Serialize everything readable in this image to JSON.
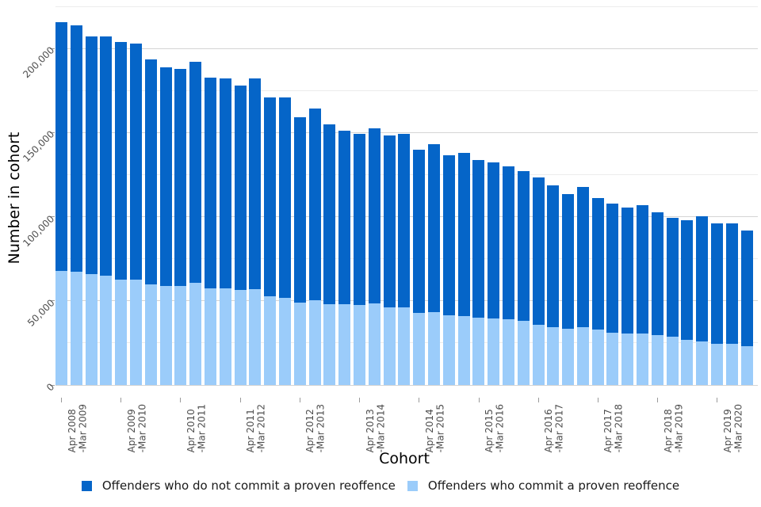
{
  "chart_data": {
    "type": "bar",
    "stacked": true,
    "xlabel": "Cohort",
    "ylabel": "Number in cohort",
    "ylim": [
      0,
      225000
    ],
    "grid_step": 25000,
    "grid_on": true,
    "legend_position": "bottom",
    "y_ticks": [
      0,
      50000,
      100000,
      150000,
      200000
    ],
    "y_tick_labels": [
      "0",
      "50,000",
      "100,000",
      "150,000",
      "200,000"
    ],
    "x_groups": [
      {
        "line1": "Apr 2008",
        "line2": "-Mar 2009",
        "bars": 4
      },
      {
        "line1": "Apr 2009",
        "line2": "-Mar 2010",
        "bars": 4
      },
      {
        "line1": "Apr 2010",
        "line2": "-Mar 2011",
        "bars": 4
      },
      {
        "line1": "Apr 2011",
        "line2": "-Mar 2012",
        "bars": 4
      },
      {
        "line1": "Apr 2012",
        "line2": "-Mar 2013",
        "bars": 4
      },
      {
        "line1": "Apr 2013",
        "line2": "-Mar 2014",
        "bars": 4
      },
      {
        "line1": "Apr 2014",
        "line2": "-Mar 2015",
        "bars": 4
      },
      {
        "line1": "Apr 2015",
        "line2": "-Mar 2016",
        "bars": 4
      },
      {
        "line1": "Apr 2016",
        "line2": "-Mar 2017",
        "bars": 4
      },
      {
        "line1": "Apr 2017",
        "line2": "-Mar 2018",
        "bars": 4
      },
      {
        "line1": "Apr 2018",
        "line2": "-Mar 2019",
        "bars": 4
      },
      {
        "line1": "Apr 2019",
        "line2": "-Mar 2020",
        "bars": 3
      }
    ],
    "series": [
      {
        "name": "Offenders who do not commit a proven reoffence",
        "color": "#0565c8",
        "values": [
          147500,
          146000,
          141000,
          142000,
          141500,
          140500,
          133500,
          130000,
          129000,
          131500,
          125000,
          124500,
          121500,
          125000,
          118500,
          119000,
          110000,
          114000,
          107000,
          103000,
          101500,
          104000,
          102500,
          103000,
          97000,
          99500,
          95000,
          97000,
          93500,
          93000,
          91000,
          89000,
          87500,
          84000,
          80000,
          83000,
          78000,
          77000,
          75000,
          76500,
          73000,
          71000,
          71000,
          74500,
          71500,
          71500,
          69000
        ]
      },
      {
        "name": "Offenders who commit a proven reoffence",
        "color": "#9bccfa",
        "values": [
          68000,
          67500,
          66000,
          65000,
          62500,
          62500,
          60000,
          59000,
          59000,
          60500,
          57500,
          57500,
          56500,
          57000,
          52500,
          52000,
          49000,
          50500,
          48000,
          48000,
          47500,
          48500,
          46000,
          46000,
          43000,
          43500,
          41500,
          41000,
          40000,
          39500,
          39000,
          38000,
          36000,
          34500,
          33500,
          34500,
          33000,
          31000,
          30500,
          30500,
          29500,
          28500,
          27000,
          26000,
          24500,
          24500,
          23000
        ]
      }
    ]
  }
}
